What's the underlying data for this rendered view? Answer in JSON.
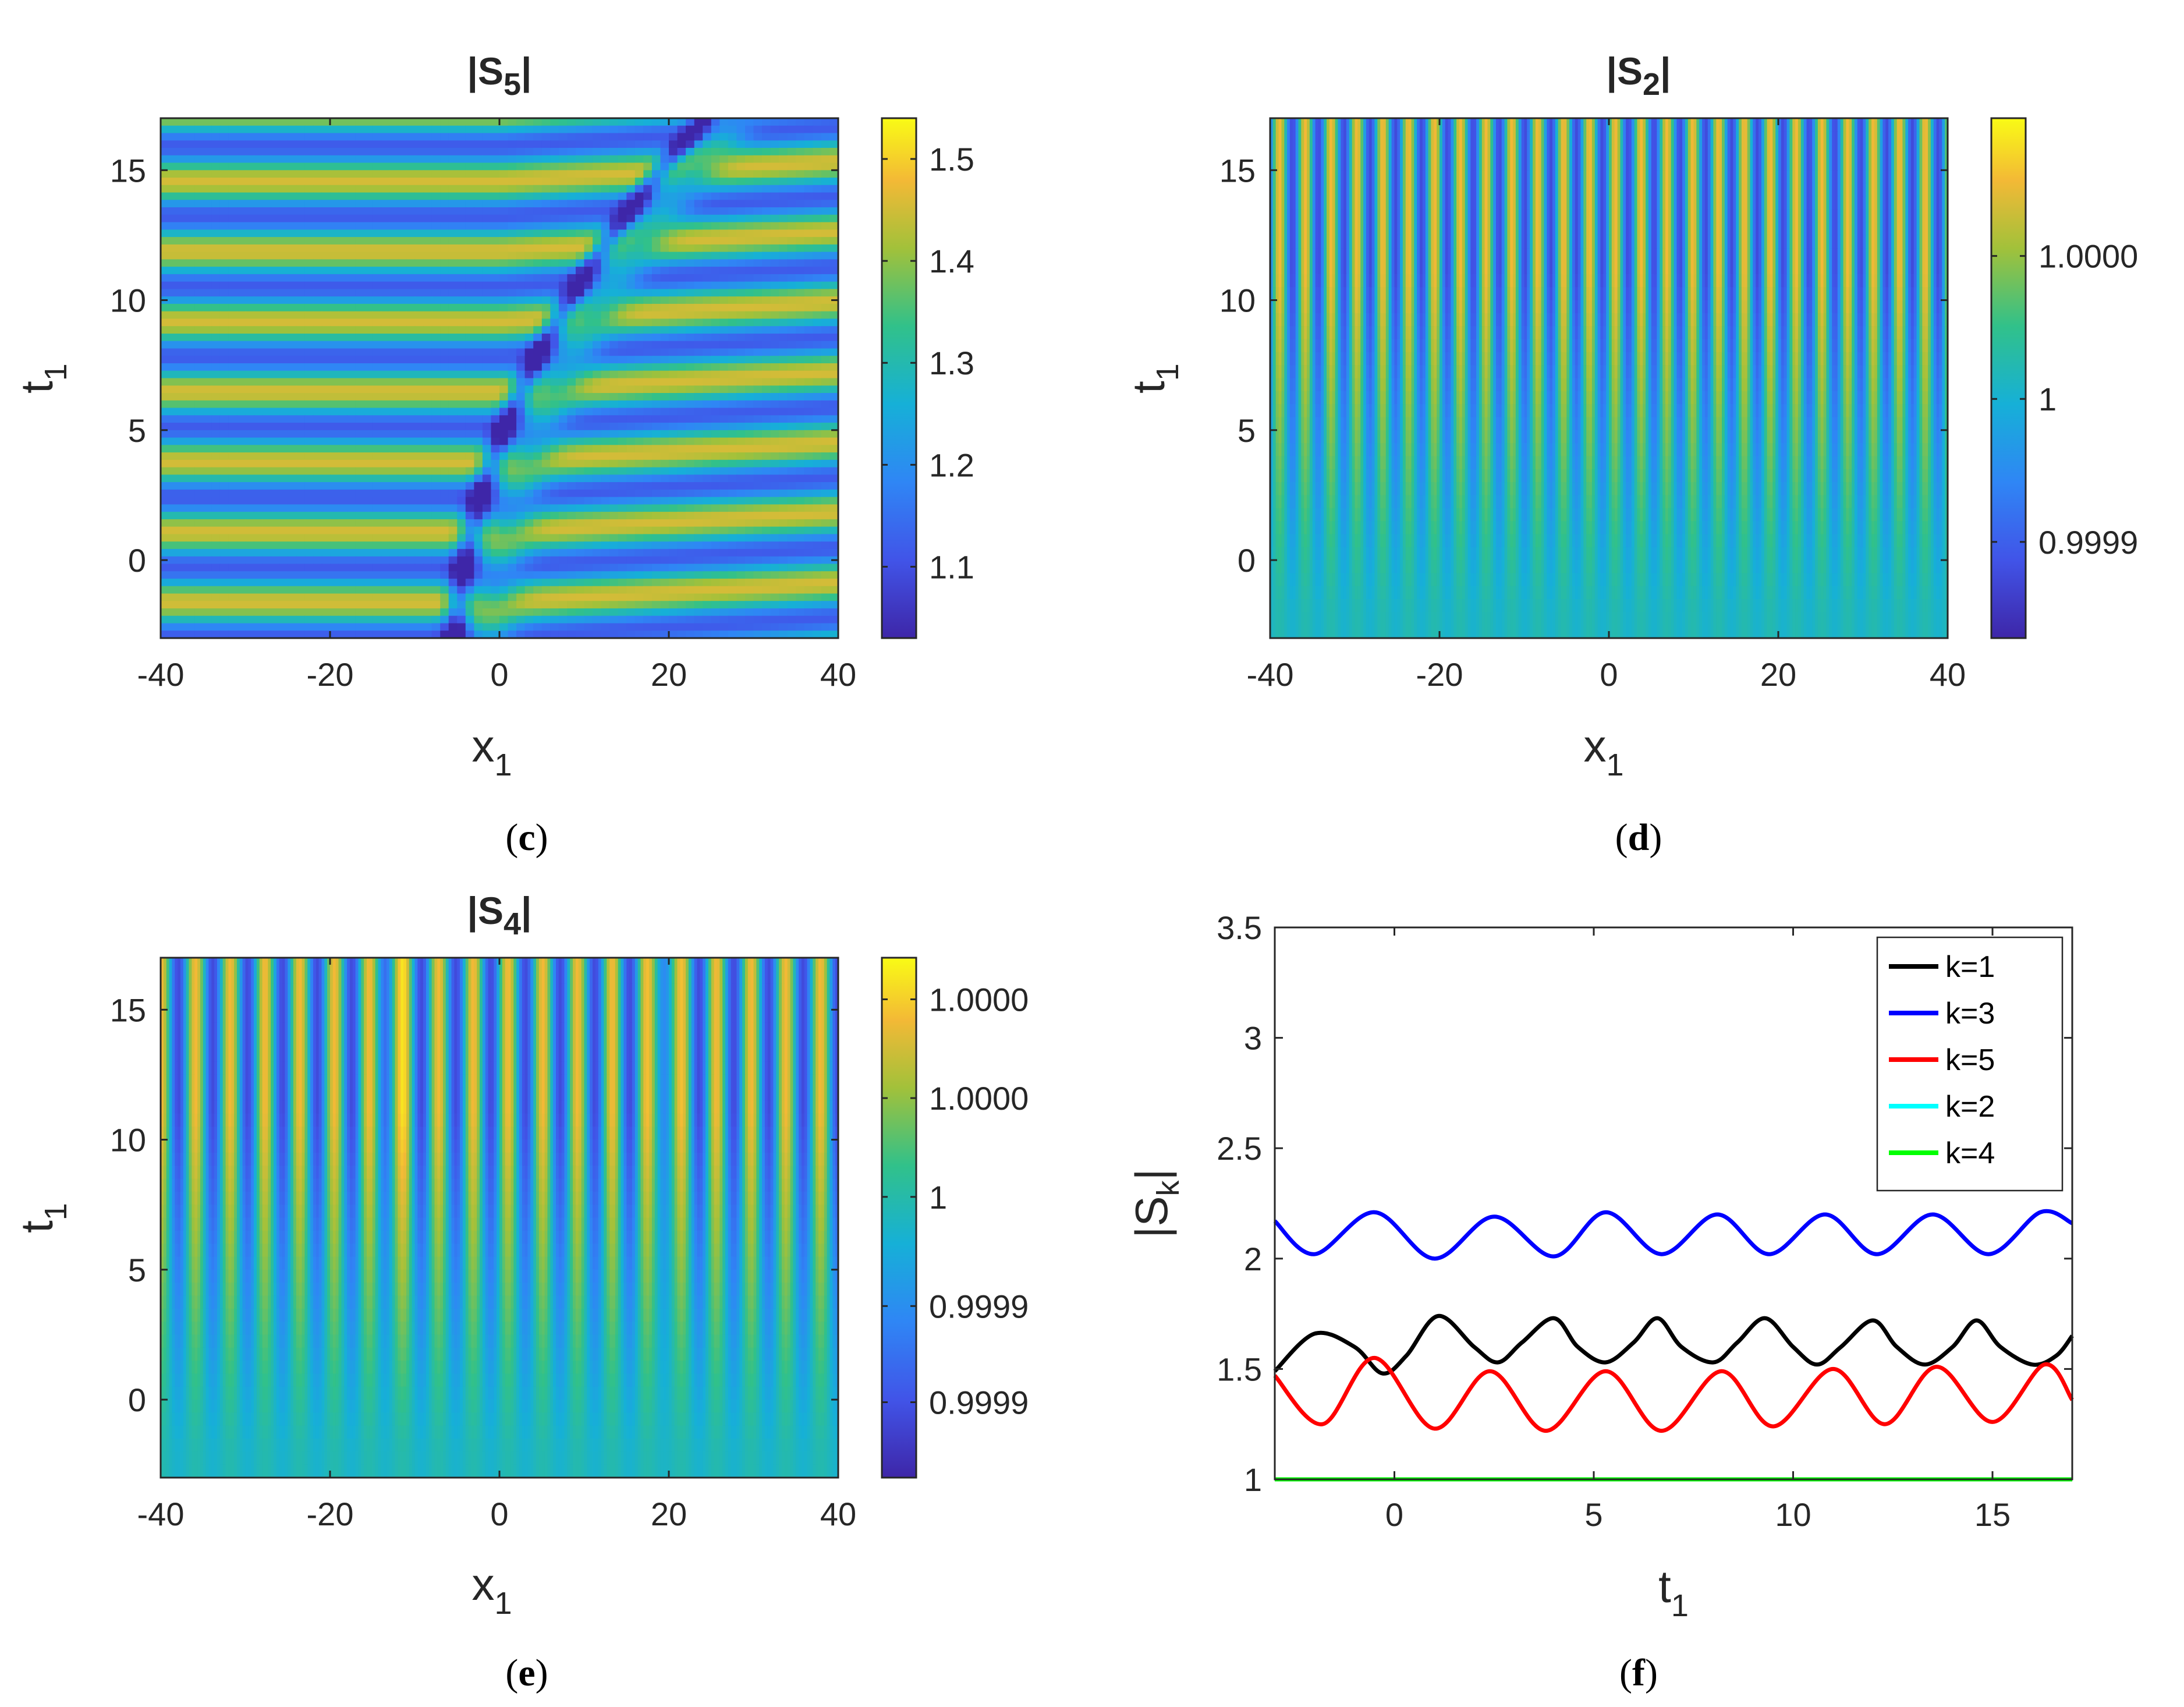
{
  "panels": {
    "c": {
      "label": "c",
      "title": {
        "main": "|S",
        "sub": "5",
        "close": "|"
      },
      "xlabel": {
        "main": "x",
        "sub": "1"
      },
      "ylabel": {
        "main": "t",
        "sub": "1"
      },
      "x_ticks": [
        "-40",
        "-20",
        "0",
        "20",
        "40"
      ],
      "y_ticks": [
        "15",
        "10",
        "5",
        "0"
      ],
      "colorbar_ticks": [
        "1.5",
        "1.4",
        "1.3",
        "1.2",
        "1.1"
      ]
    },
    "d": {
      "label": "d",
      "title": {
        "main": "|S",
        "sub": "2",
        "close": "|"
      },
      "xlabel": {
        "main": "x",
        "sub": "1"
      },
      "ylabel": {
        "main": "t",
        "sub": "1"
      },
      "x_ticks": [
        "-40",
        "-20",
        "0",
        "20",
        "40"
      ],
      "y_ticks": [
        "15",
        "10",
        "5",
        "0"
      ],
      "colorbar_ticks": [
        "1.0000",
        "1",
        "0.9999"
      ]
    },
    "e": {
      "label": "e",
      "title": {
        "main": "|S",
        "sub": "4",
        "close": "|"
      },
      "xlabel": {
        "main": "x",
        "sub": "1"
      },
      "ylabel": {
        "main": "t",
        "sub": "1"
      },
      "x_ticks": [
        "-40",
        "-20",
        "0",
        "20",
        "40"
      ],
      "y_ticks": [
        "15",
        "10",
        "5",
        "0"
      ],
      "colorbar_ticks": [
        "1.0000",
        "1.0000",
        "1",
        "0.9999",
        "0.9999"
      ]
    },
    "f": {
      "label": "f",
      "xlabel": {
        "main": "t",
        "sub": "1"
      },
      "ylabel": {
        "main": "|S",
        "sub": "k",
        "close": "|"
      },
      "x_ticks": [
        "0",
        "5",
        "10",
        "15"
      ],
      "y_ticks": [
        "3.5",
        "3",
        "2.5",
        "2",
        "1.5",
        "1"
      ],
      "legend": [
        "k=1",
        "k=3",
        "k=5",
        "k=2",
        "k=4"
      ]
    }
  },
  "chart_data": [
    {
      "panel": "c",
      "type": "heatmap",
      "title": "|S5|",
      "xlabel": "x1",
      "ylabel": "t1",
      "xlim": [
        -40,
        40
      ],
      "ylim": [
        -3,
        17
      ],
      "colorbar_range": [
        1.03,
        1.54
      ],
      "colormap": "parula",
      "description_values": {
        "background_min": 1.1,
        "background_max": 1.45,
        "peak": 1.54
      }
    },
    {
      "panel": "d",
      "type": "heatmap",
      "title": "|S2|",
      "xlabel": "x1",
      "ylabel": "t1",
      "xlim": [
        -40,
        40
      ],
      "ylim": [
        -3,
        17
      ],
      "colorbar_range": [
        0.99985,
        1.00015
      ],
      "colormap": "parula"
    },
    {
      "panel": "e",
      "type": "heatmap",
      "title": "|S4|",
      "xlabel": "x1",
      "ylabel": "t1",
      "xlim": [
        -40,
        40
      ],
      "ylim": [
        -3,
        17
      ],
      "colorbar_range": [
        0.99985,
        1.00015
      ],
      "colormap": "parula"
    },
    {
      "panel": "f",
      "type": "line",
      "xlabel": "t1",
      "ylabel": "|Sk|",
      "xlim": [
        -3,
        17
      ],
      "ylim": [
        1,
        3.5
      ],
      "series": [
        {
          "name": "k=1",
          "color": "#000000",
          "t": [
            -3,
            -2,
            -1,
            -0.3,
            0.3,
            1.1,
            2,
            2.6,
            3.2,
            4,
            4.6,
            5.3,
            6,
            6.6,
            7.2,
            8,
            8.6,
            9.3,
            10,
            10.6,
            11.2,
            12,
            12.6,
            13.3,
            14,
            14.6,
            15.2,
            16,
            16.6,
            17
          ],
          "values": [
            1.49,
            1.66,
            1.6,
            1.48,
            1.56,
            1.74,
            1.6,
            1.53,
            1.62,
            1.73,
            1.6,
            1.53,
            1.62,
            1.73,
            1.6,
            1.53,
            1.62,
            1.73,
            1.6,
            1.52,
            1.6,
            1.72,
            1.6,
            1.52,
            1.6,
            1.72,
            1.6,
            1.52,
            1.56,
            1.65
          ]
        },
        {
          "name": "k=3",
          "color": "#0000ff",
          "t": [
            -3,
            -2,
            -0.5,
            1,
            2.5,
            4,
            5.3,
            6.7,
            8.1,
            9.4,
            10.8,
            12.1,
            13.5,
            14.9,
            16.2,
            17
          ],
          "values": [
            2.17,
            2.02,
            2.21,
            2.0,
            2.19,
            2.01,
            2.21,
            2.02,
            2.2,
            2.02,
            2.2,
            2.02,
            2.2,
            2.02,
            2.21,
            2.16
          ]
        },
        {
          "name": "k=5",
          "color": "#ff0000",
          "t": [
            -3,
            -1.8,
            -0.5,
            1,
            2.4,
            3.8,
            5.3,
            6.7,
            8.2,
            9.5,
            11,
            12.3,
            13.6,
            15,
            16.3,
            17
          ],
          "values": [
            1.47,
            1.25,
            1.55,
            1.23,
            1.49,
            1.22,
            1.49,
            1.22,
            1.49,
            1.24,
            1.5,
            1.25,
            1.51,
            1.26,
            1.52,
            1.36
          ]
        },
        {
          "name": "k=2",
          "color": "#00ffff",
          "t": [
            -3,
            17
          ],
          "values": [
            1.0,
            1.0
          ]
        },
        {
          "name": "k=4",
          "color": "#00ff00",
          "t": [
            -3,
            17
          ],
          "values": [
            1.0,
            1.0
          ]
        }
      ]
    }
  ]
}
